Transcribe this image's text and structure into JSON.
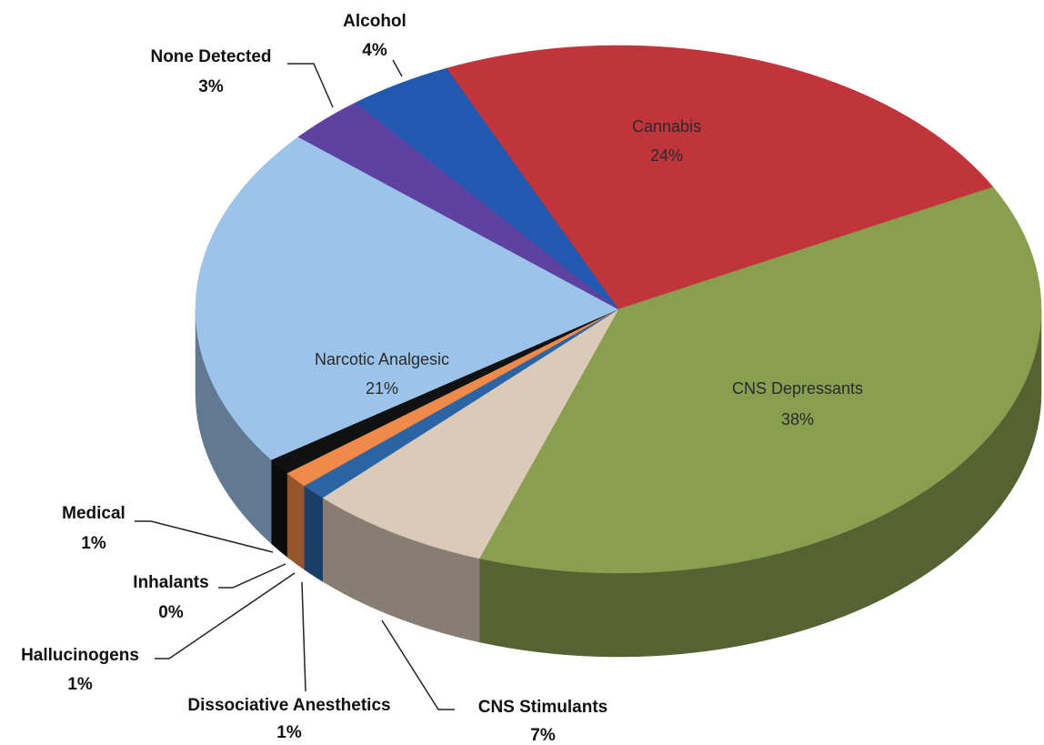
{
  "chart_data": {
    "type": "pie",
    "categories": [
      "Cannabis",
      "CNS Depressants",
      "CNS Stimulants",
      "Dissociative Anesthetics",
      "Hallucinogens",
      "Inhalants",
      "Medical",
      "Narcotic Analgesic",
      "None Detected",
      "Alcohol"
    ],
    "values": [
      24,
      38,
      7,
      1,
      1,
      0,
      1,
      21,
      3,
      4
    ],
    "value_labels": [
      "24%",
      "38%",
      "7%",
      "1%",
      "1%",
      "0%",
      "1%",
      "21%",
      "3%",
      "4%"
    ],
    "colors": [
      "#c0343c",
      "#8a9e50",
      "#dccab8",
      "#2a64a4",
      "#f08a4a",
      "#f2e08a",
      "#111111",
      "#9cc4ea",
      "#5e42a2",
      "#2258b0"
    ]
  }
}
